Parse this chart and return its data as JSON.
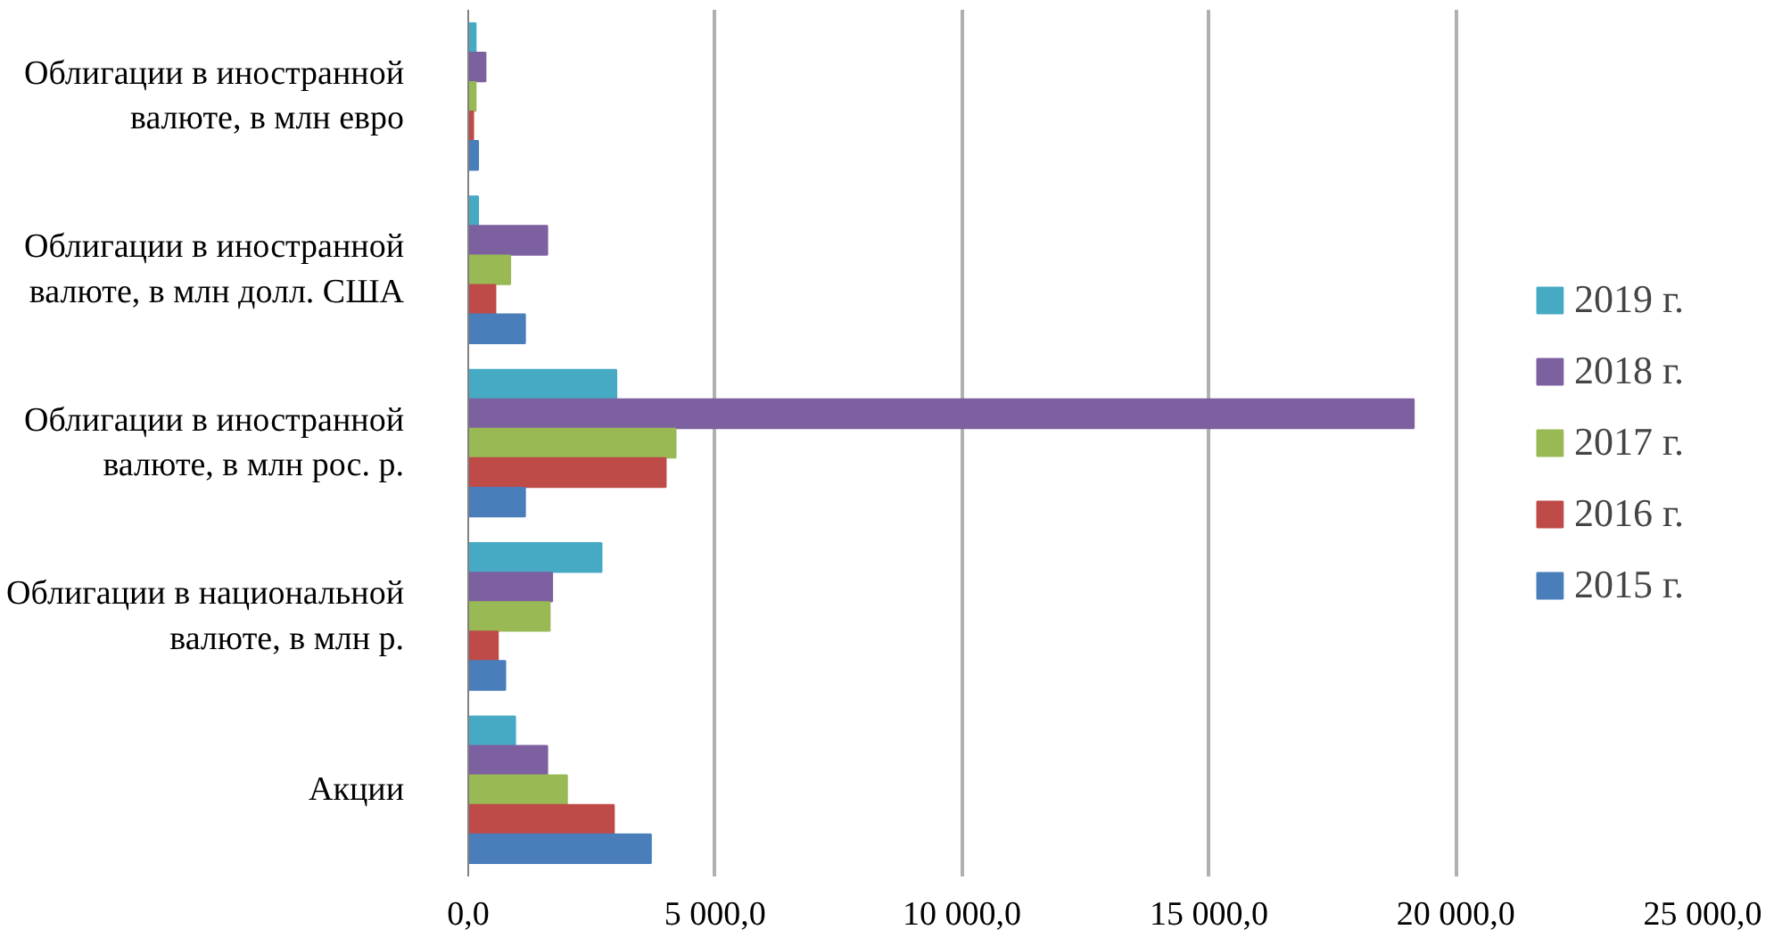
{
  "chart_data": {
    "type": "bar",
    "orientation": "horizontal",
    "categories": [
      "Облигации в иностранной валюте, в млн евро",
      "Облигации в иностранной валюте, в млн долл. США",
      "Облигации в иностранной валюте, в млн рос. р.",
      "Облигации в национальной валюте, в млн р.",
      "Акции"
    ],
    "series": [
      {
        "name": "2019 г.",
        "color": "#46aac5",
        "values": [
          150,
          200,
          3000,
          2700,
          950
        ]
      },
      {
        "name": "2018 г.",
        "color": "#7d60a0",
        "values": [
          350,
          1600,
          19150,
          1700,
          1600
        ]
      },
      {
        "name": "2017 г.",
        "color": "#98b954",
        "values": [
          150,
          850,
          4200,
          1650,
          2000
        ]
      },
      {
        "name": "2016 г.",
        "color": "#be4b48",
        "values": [
          100,
          550,
          4000,
          600,
          2950
        ]
      },
      {
        "name": "2015 г.",
        "color": "#4a7ebb",
        "values": [
          200,
          1150,
          1150,
          750,
          3700
        ]
      }
    ],
    "xlim": [
      0,
      25000
    ],
    "xticks": [
      {
        "value": 0,
        "label": "0,0"
      },
      {
        "value": 5000,
        "label": "5 000,0"
      },
      {
        "value": 10000,
        "label": "10 000,0"
      },
      {
        "value": 15000,
        "label": "15 000,0"
      },
      {
        "value": 20000,
        "label": "20 000,0"
      },
      {
        "value": 25000,
        "label": "25 000,0"
      }
    ],
    "grid": "x",
    "legend": "right"
  }
}
